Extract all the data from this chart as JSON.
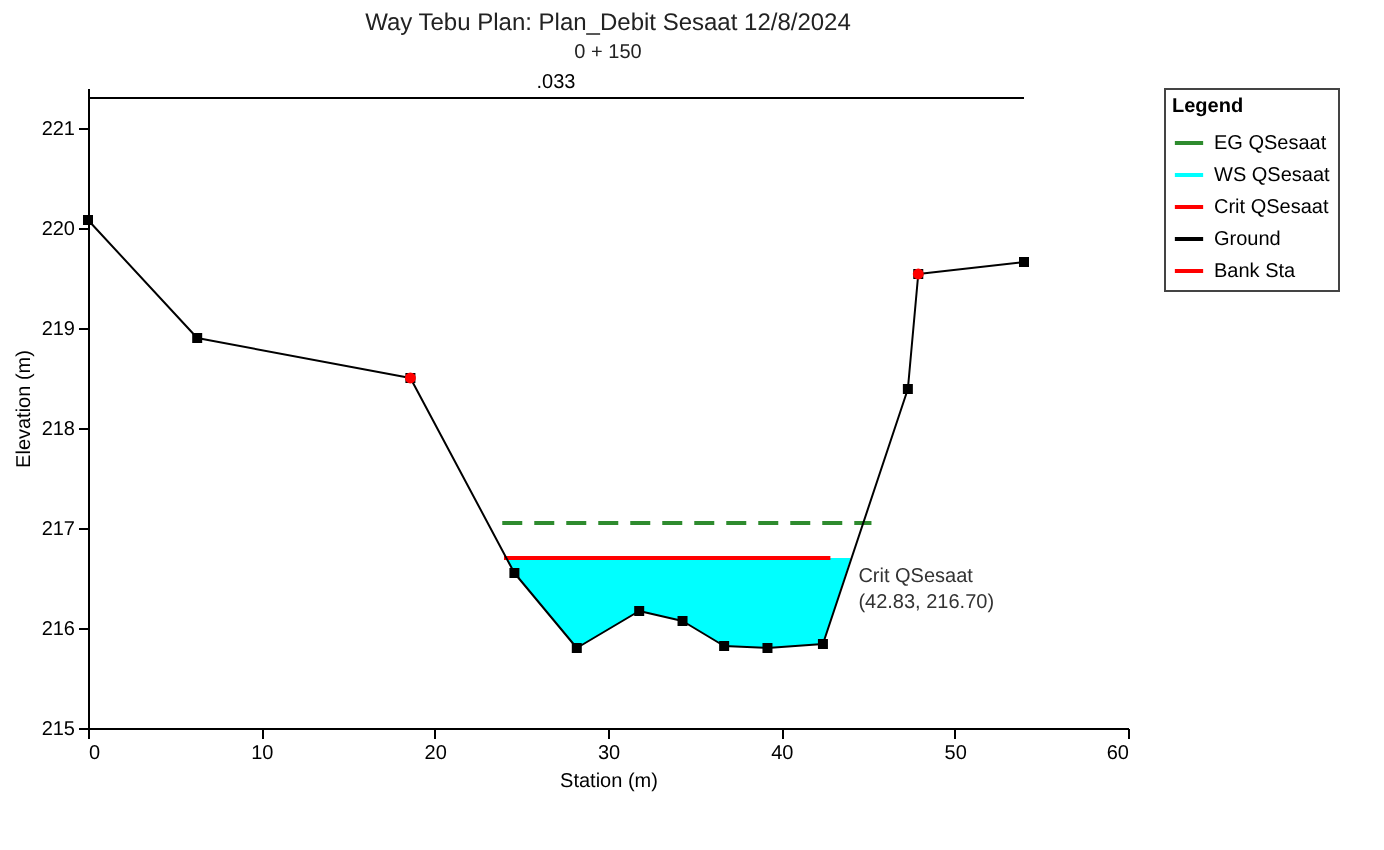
{
  "chart_data": {
    "type": "line",
    "title": "Way Tebu     Plan: Plan_Debit Sesaat     12/8/2024",
    "subtitle": "0 + 150",
    "xlabel": "Station (m)",
    "ylabel": "Elevation (m)",
    "legend_title": "Legend",
    "legend": "top right",
    "grid": false,
    "xlim": [
      0,
      60
    ],
    "xticks": [
      0,
      10,
      20,
      30,
      40,
      50,
      60
    ],
    "ylim": [
      215,
      221.4
    ],
    "yticks": [
      215,
      216,
      217,
      218,
      219,
      220,
      221
    ],
    "series": [
      {
        "name": "EG QSesaat",
        "type": "line",
        "color": "#2e8b2e",
        "line_style": "dashed",
        "marker": "none",
        "x": [
          23.9,
          45.2
        ],
        "values": [
          217.05,
          217.05
        ]
      },
      {
        "name": "WS QSesaat",
        "type": "line",
        "color": "#00ffff",
        "x": [
          24.1,
          24.6,
          28.2,
          31.8,
          34.3,
          36.7,
          39.2,
          42.4,
          44.0
        ],
        "values": [
          null,
          null,
          null,
          null,
          null,
          null,
          null,
          null,
          null
        ],
        "lower": [
          216.7,
          216.55,
          215.8,
          216.17,
          216.07,
          215.82,
          215.8,
          215.84,
          216.7
        ],
        "upper": [
          216.7,
          216.7,
          216.7,
          216.7,
          216.7,
          216.7,
          216.7,
          216.7,
          216.7
        ]
      },
      {
        "name": "Crit QSesaat",
        "type": "line",
        "color": "#ff0000",
        "line_style": "solid",
        "marker": "none",
        "x": [
          24.0,
          42.83
        ],
        "values": [
          216.7,
          216.7
        ]
      },
      {
        "name": "Ground",
        "type": "line",
        "color": "#000000",
        "line_style": "solid",
        "marker": "square",
        "x": [
          0,
          6.3,
          18.6,
          24.6,
          28.2,
          31.8,
          34.3,
          36.7,
          39.2,
          42.4,
          47.3,
          47.9,
          54.0
        ],
        "values": [
          220.08,
          218.9,
          218.5,
          216.55,
          215.8,
          216.17,
          216.07,
          215.82,
          215.8,
          215.84,
          218.39,
          219.54,
          219.66
        ]
      },
      {
        "type": "line",
        "color": "#000000",
        "x": [
          0,
          54.0
        ],
        "values": [
          221.3,
          221.3
        ]
      },
      {
        "name": "Bank Sta",
        "type": "scatter",
        "color": "#ff0000",
        "marker": "circle",
        "x": [
          18.6,
          47.9
        ],
        "values": [
          218.5,
          219.54
        ]
      }
    ],
    "annotations": [
      ".033",
      {
        "text": "Crit QSesaat",
        "x": 42.83,
        "y": 216.7
      },
      {
        "text": "(42.83, 216.70)",
        "x": 42.83,
        "y": 216.7
      }
    ]
  }
}
